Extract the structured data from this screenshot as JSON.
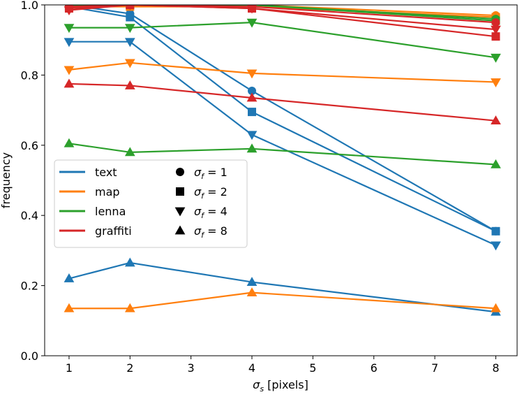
{
  "chart_data": {
    "type": "line",
    "title": "",
    "xlabel": {
      "symbol": "σ",
      "sub": "s",
      "suffix": " [pixels]"
    },
    "ylabel": "frequency",
    "xlim": [
      0.6,
      8.35
    ],
    "ylim": [
      0.0,
      1.0
    ],
    "xticks": [
      1,
      2,
      3,
      4,
      5,
      6,
      7,
      8
    ],
    "yticks": [
      0.0,
      0.2,
      0.4,
      0.6,
      0.8,
      1.0
    ],
    "grid": false,
    "legend_placement": "center-left",
    "x": [
      1,
      2,
      4,
      8
    ],
    "images": [
      {
        "name": "text",
        "color": "#1f77b4"
      },
      {
        "name": "map",
        "color": "#ff7f0e"
      },
      {
        "name": "lenna",
        "color": "#2ca02c"
      },
      {
        "name": "graffiti",
        "color": "#d62728"
      }
    ],
    "markers": [
      {
        "shape": "circle",
        "label": {
          "symbol": "σ",
          "sub": "f",
          "value": " = 1"
        }
      },
      {
        "shape": "square",
        "label": {
          "symbol": "σ",
          "sub": "f",
          "value": " = 2"
        }
      },
      {
        "shape": "triangle-down",
        "label": {
          "symbol": "σ",
          "sub": "f",
          "value": " = 4"
        }
      },
      {
        "shape": "triangle-up",
        "label": {
          "symbol": "σ",
          "sub": "f",
          "value": " = 8"
        }
      }
    ],
    "series": [
      {
        "image": "text",
        "sigma_f": 1,
        "values": [
          1.0,
          0.975,
          0.755,
          0.355
        ]
      },
      {
        "image": "text",
        "sigma_f": 2,
        "values": [
          0.995,
          0.965,
          0.695,
          0.355
        ]
      },
      {
        "image": "text",
        "sigma_f": 4,
        "values": [
          0.895,
          0.895,
          0.63,
          0.315
        ]
      },
      {
        "image": "text",
        "sigma_f": 8,
        "values": [
          0.22,
          0.265,
          0.21,
          0.125
        ]
      },
      {
        "image": "map",
        "sigma_f": 1,
        "values": [
          1.0,
          1.0,
          1.0,
          0.97
        ]
      },
      {
        "image": "map",
        "sigma_f": 2,
        "values": [
          0.995,
          0.995,
          0.995,
          0.965
        ]
      },
      {
        "image": "map",
        "sigma_f": 4,
        "values": [
          0.815,
          0.835,
          0.805,
          0.78
        ]
      },
      {
        "image": "map",
        "sigma_f": 8,
        "values": [
          0.135,
          0.135,
          0.18,
          0.135
        ]
      },
      {
        "image": "lenna",
        "sigma_f": 1,
        "values": [
          1.0,
          1.0,
          1.0,
          0.96
        ]
      },
      {
        "image": "lenna",
        "sigma_f": 2,
        "values": [
          1.0,
          1.0,
          1.0,
          0.955
        ]
      },
      {
        "image": "lenna",
        "sigma_f": 4,
        "values": [
          0.935,
          0.935,
          0.95,
          0.85
        ]
      },
      {
        "image": "lenna",
        "sigma_f": 8,
        "values": [
          0.605,
          0.58,
          0.59,
          0.545
        ]
      },
      {
        "image": "graffiti",
        "sigma_f": 1,
        "values": [
          0.995,
          1.0,
          0.995,
          0.95
        ]
      },
      {
        "image": "graffiti",
        "sigma_f": 2,
        "values": [
          0.99,
          1.0,
          0.99,
          0.91
        ]
      },
      {
        "image": "graffiti",
        "sigma_f": 4,
        "values": [
          0.985,
          1.0,
          0.99,
          0.93
        ]
      },
      {
        "image": "graffiti",
        "sigma_f": 8,
        "values": [
          0.775,
          0.77,
          0.735,
          0.67
        ]
      }
    ]
  }
}
